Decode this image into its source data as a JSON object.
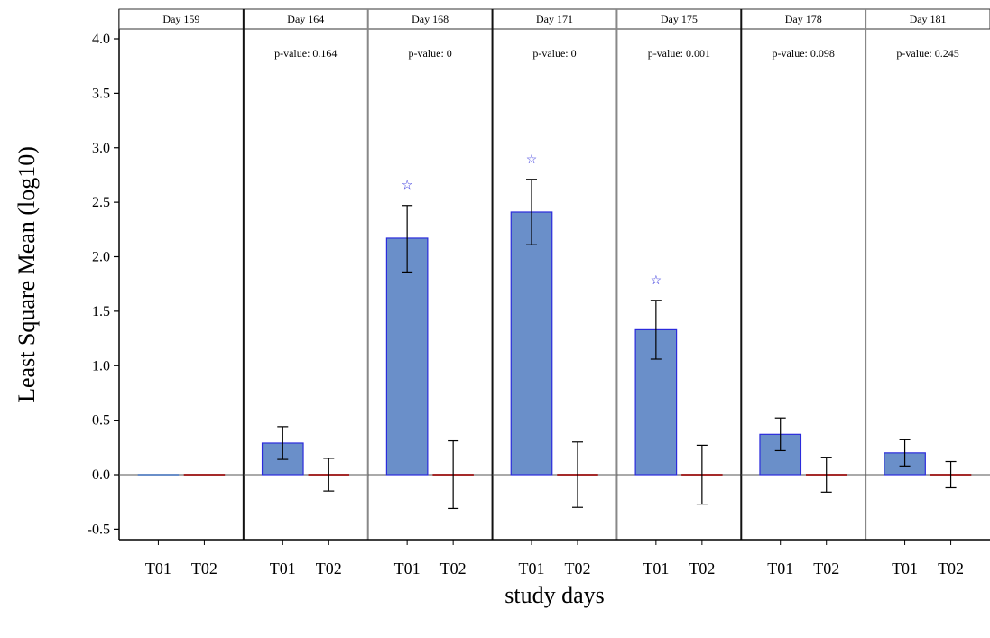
{
  "chart_data": {
    "type": "bar",
    "title": "",
    "xlabel": "study days",
    "ylabel": "Least Square Mean (log10)",
    "ylim": [
      -0.6,
      4.1
    ],
    "yticks": [
      -0.5,
      0.0,
      0.5,
      1.0,
      1.5,
      2.0,
      2.5,
      3.0,
      3.5,
      4.0
    ],
    "ytick_labels": [
      "-0.5",
      "0.0",
      "0.5",
      "1.0",
      "1.5",
      "2.0",
      "2.5",
      "3.0",
      "3.5",
      "4.0"
    ],
    "categories": [
      "T01",
      "T02"
    ],
    "series_colors": {
      "T01": "#6a8fc9",
      "T02": "#a52a2a"
    },
    "marker_color": "#2b2bdc",
    "panels": [
      {
        "title": "Day 159",
        "p_label": "",
        "p_value": "",
        "bars": [
          {
            "category": "T01",
            "value": 0.0,
            "lower": 0.0,
            "upper": 0.0
          },
          {
            "category": "T02",
            "value": 0.0,
            "lower": 0.0,
            "upper": 0.0
          }
        ],
        "significant": false
      },
      {
        "title": "Day 164",
        "p_label": "p-value:",
        "p_value": "0.164",
        "bars": [
          {
            "category": "T01",
            "value": 0.29,
            "lower": 0.14,
            "upper": 0.44
          },
          {
            "category": "T02",
            "value": 0.0,
            "lower": -0.15,
            "upper": 0.15
          }
        ],
        "significant": false
      },
      {
        "title": "Day 168",
        "p_label": "p-value:",
        "p_value": "0",
        "bars": [
          {
            "category": "T01",
            "value": 2.17,
            "lower": 1.86,
            "upper": 2.47
          },
          {
            "category": "T02",
            "value": 0.0,
            "lower": -0.31,
            "upper": 0.31
          }
        ],
        "significant": true,
        "marker": "☆"
      },
      {
        "title": "Day 171",
        "p_label": "p-value:",
        "p_value": "0",
        "bars": [
          {
            "category": "T01",
            "value": 2.41,
            "lower": 2.11,
            "upper": 2.71
          },
          {
            "category": "T02",
            "value": 0.0,
            "lower": -0.3,
            "upper": 0.3
          }
        ],
        "significant": true,
        "marker": "☆"
      },
      {
        "title": "Day 175",
        "p_label": "p-value:",
        "p_value": "0.001",
        "bars": [
          {
            "category": "T01",
            "value": 1.33,
            "lower": 1.06,
            "upper": 1.6
          },
          {
            "category": "T02",
            "value": 0.0,
            "lower": -0.27,
            "upper": 0.27
          }
        ],
        "significant": true,
        "marker": "☆"
      },
      {
        "title": "Day 178",
        "p_label": "p-value:",
        "p_value": "0.098",
        "bars": [
          {
            "category": "T01",
            "value": 0.37,
            "lower": 0.22,
            "upper": 0.52
          },
          {
            "category": "T02",
            "value": 0.0,
            "lower": -0.16,
            "upper": 0.16
          }
        ],
        "significant": false
      },
      {
        "title": "Day 181",
        "p_label": "p-value:",
        "p_value": "0.245",
        "bars": [
          {
            "category": "T01",
            "value": 0.2,
            "lower": 0.08,
            "upper": 0.32
          },
          {
            "category": "T02",
            "value": 0.0,
            "lower": -0.12,
            "upper": 0.12
          }
        ],
        "significant": false
      }
    ]
  }
}
